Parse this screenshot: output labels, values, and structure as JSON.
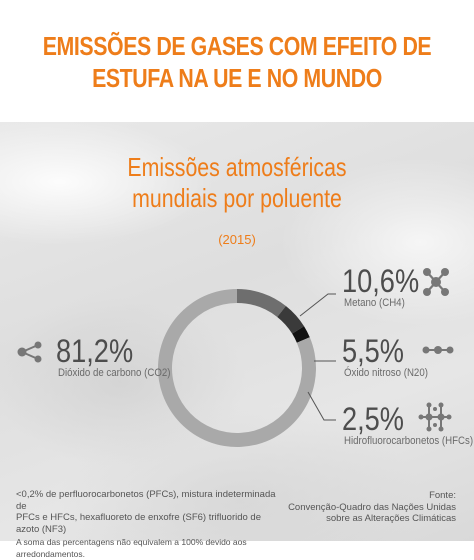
{
  "header": {
    "title_line1": "EMISSÕES DE GASES COM EFEITO DE",
    "title_line2": "ESTUFA NA UE E NO MUNDO"
  },
  "chart_data": {
    "type": "pie",
    "title": "Emissões atmosféricas mundiais por poluente",
    "subtitle": "(2015)",
    "slices": [
      {
        "label": "Dióxido de carbono (CO2)",
        "value": 81.2,
        "value_label": "81,2%",
        "color": "#a9a9a9",
        "icon": "co2-molecule-icon"
      },
      {
        "label": "Metano (CH4)",
        "value": 10.6,
        "value_label": "10,6%",
        "color": "#6e6e6e",
        "icon": "ch4-molecule-icon"
      },
      {
        "label": "Óxido nitroso (N20)",
        "value": 5.5,
        "value_label": "5,5%",
        "color": "#3a3a3a",
        "icon": "n2o-molecule-icon"
      },
      {
        "label": "Hidrofluorocarbonetos (HFCs)",
        "value": 2.5,
        "value_label": "2,5%",
        "color": "#111111",
        "icon": "hfc-molecule-icon"
      }
    ]
  },
  "chart_text": {
    "title_line1": "Emissões atmosféricas",
    "title_line2": "mundiais por poluente",
    "year": "(2015)"
  },
  "footnote": {
    "line1": "<0,2% de perfluorocarbonetos (PFCs), mistura indeterminada de",
    "line2": "PFCs e HFCs, hexafluoreto de enxofre (SF6) trifluorido de azoto (NF3)",
    "line3": "A soma das percentagens não equivalem a 100% devido aos arredondamentos."
  },
  "source": {
    "line1": "Fonte:",
    "line2": "Convenção-Quadro das Nações Unidas",
    "line3": "sobre as Alterações Climáticas"
  },
  "colors": {
    "accent": "#ee7d1a",
    "text": "#4d4d4d"
  }
}
